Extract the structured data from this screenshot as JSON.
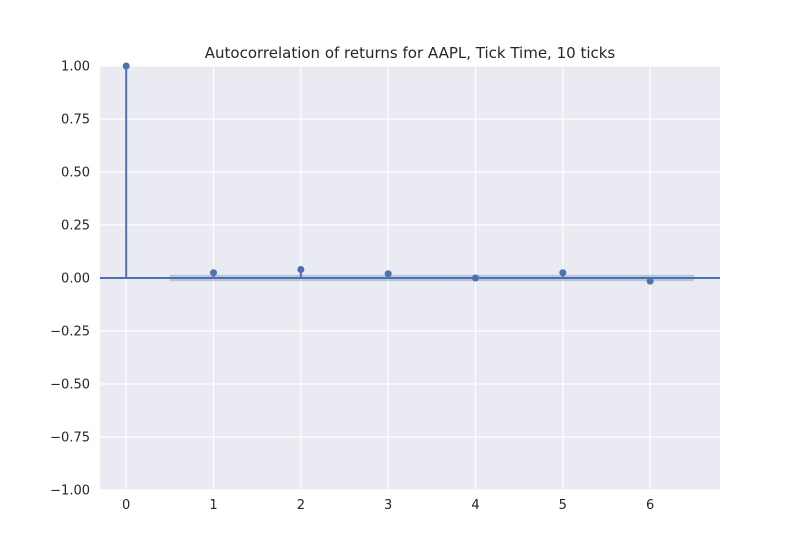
{
  "chart_data": {
    "type": "stem",
    "title": "Autocorrelation of returns for AAPL, Tick Time, 10 ticks",
    "xlabel": "",
    "ylabel": "",
    "x": [
      0,
      1,
      2,
      3,
      4,
      5,
      6
    ],
    "values": [
      1.0,
      0.025,
      0.04,
      0.02,
      0.0,
      0.025,
      -0.015
    ],
    "confidence_band": {
      "x": [
        0.5,
        6.5
      ],
      "lower": -0.015,
      "upper": 0.015
    },
    "xlim": [
      -0.3,
      6.8
    ],
    "ylim": [
      -1.0,
      1.0
    ],
    "xticks": [
      "0",
      "1",
      "2",
      "3",
      "4",
      "5",
      "6"
    ],
    "yticks": [
      "1.00",
      "0.75",
      "0.50",
      "0.25",
      "0.00",
      "−0.25",
      "−0.50",
      "−0.75",
      "−1.00"
    ],
    "ytick_values": [
      1.0,
      0.75,
      0.5,
      0.25,
      0.0,
      -0.25,
      -0.5,
      -0.75,
      -1.0
    ],
    "grid": true,
    "colors": {
      "series": "#4c72b0",
      "band": "#4c72b0",
      "background": "#eaeaf2",
      "grid": "#ffffff",
      "text": "#262626"
    }
  }
}
